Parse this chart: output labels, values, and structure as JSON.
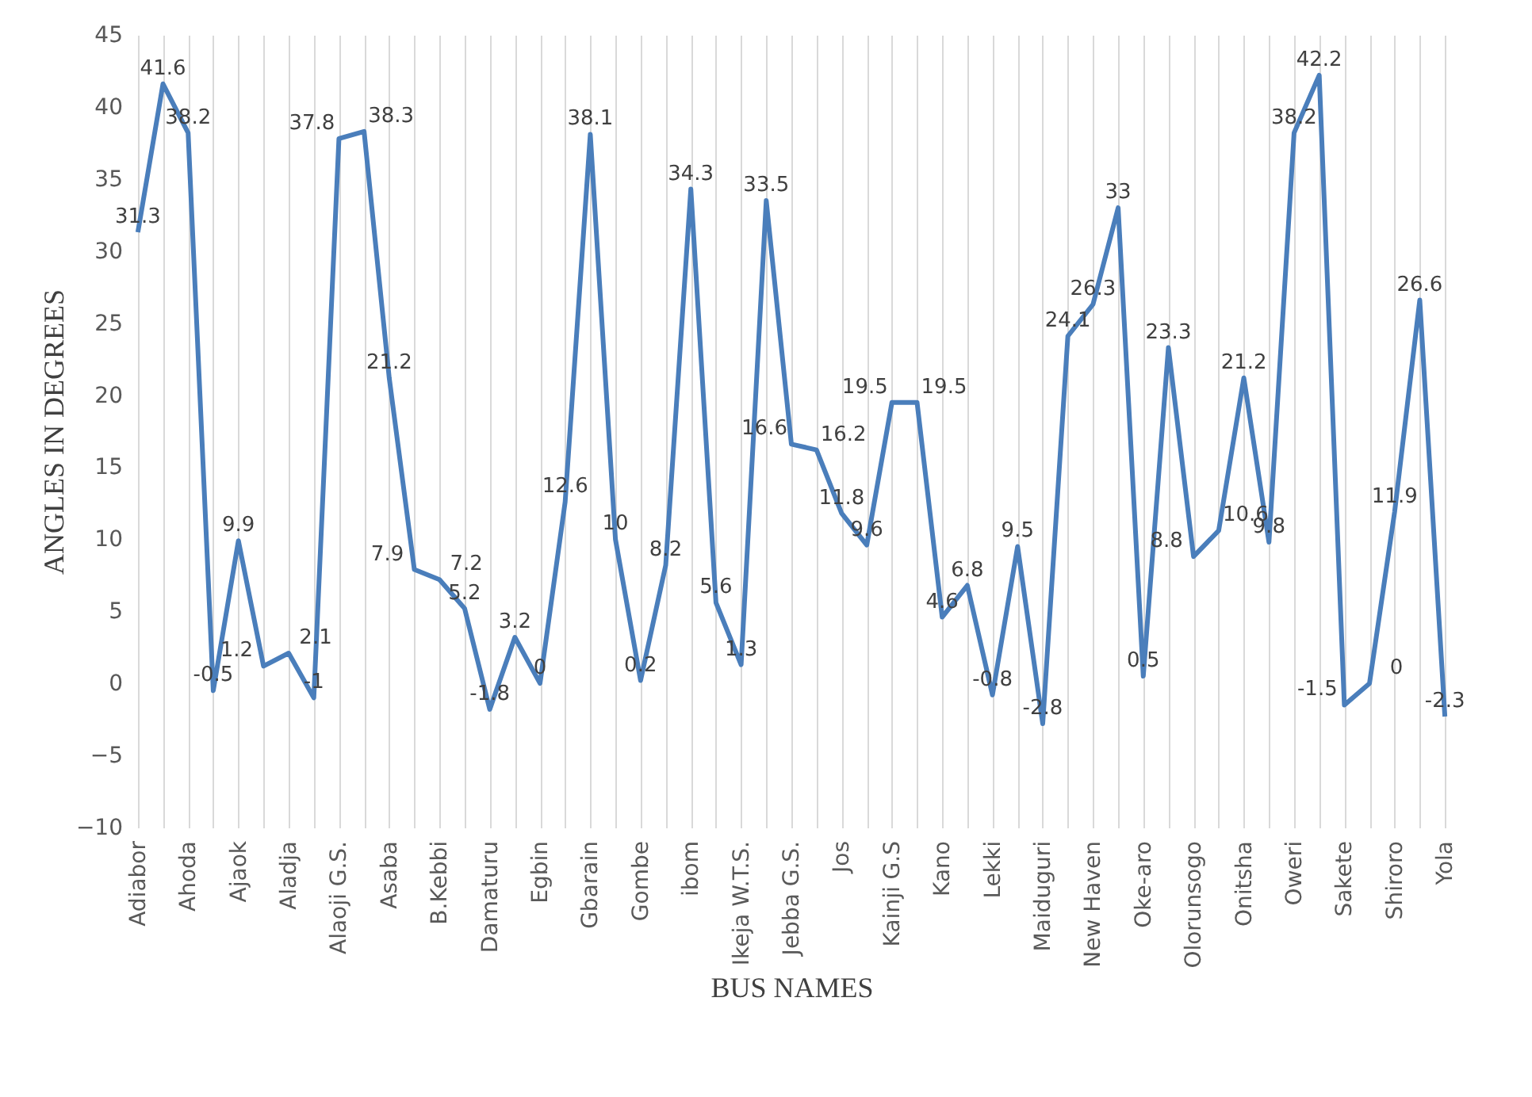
{
  "chart_data": {
    "type": "line",
    "xlabel": "BUS NAMES",
    "ylabel": "ANGLES IN DEGREES",
    "categories": [
      "Adiabor",
      null,
      "Ahoda",
      null,
      "Ajaok",
      null,
      "Aladja",
      null,
      "Alaoji G.S.",
      null,
      "Asaba",
      null,
      "B.Kebbi",
      null,
      "Damaturu",
      null,
      "Egbin",
      null,
      "Gbarain",
      null,
      "Gombe",
      null,
      "ibom",
      null,
      "Ikeja W.T.S.",
      null,
      "Jebba G.S.",
      null,
      "Jos",
      null,
      "Kainji G.S",
      null,
      "Kano",
      null,
      "Lekki",
      null,
      "Maiduguri",
      null,
      "New Haven",
      null,
      "Oke-aro",
      null,
      "Olorunsogo",
      null,
      "Onitsha",
      null,
      "Oweri",
      null,
      "Sakete",
      null,
      "Shiroro",
      null,
      "Yola"
    ],
    "series": [
      {
        "color": "#4a7ebb",
        "values": [
          31.3,
          41.6,
          38.2,
          -0.5,
          9.9,
          1.2,
          2.1,
          -1,
          37.8,
          38.3,
          21.2,
          7.9,
          7.2,
          5.2,
          -1.8,
          3.2,
          0,
          12.6,
          38.1,
          10,
          0.2,
          8.2,
          34.3,
          5.6,
          1.3,
          33.5,
          16.6,
          16.2,
          11.8,
          9.6,
          19.5,
          19.5,
          4.6,
          6.8,
          -0.8,
          9.5,
          -2.8,
          24.1,
          26.3,
          33,
          0.5,
          23.3,
          8.8,
          10.6,
          21.2,
          9.8,
          38.2,
          42.2,
          -1.5,
          0,
          11.9,
          26.6,
          -2.3
        ]
      }
    ],
    "ylim": [
      -10,
      45
    ],
    "yticks": [
      -10,
      -5,
      0,
      5,
      10,
      15,
      20,
      25,
      30,
      35,
      40,
      45
    ],
    "grid": "x",
    "data_labels": true,
    "marker": "none",
    "line_style": "solid"
  }
}
